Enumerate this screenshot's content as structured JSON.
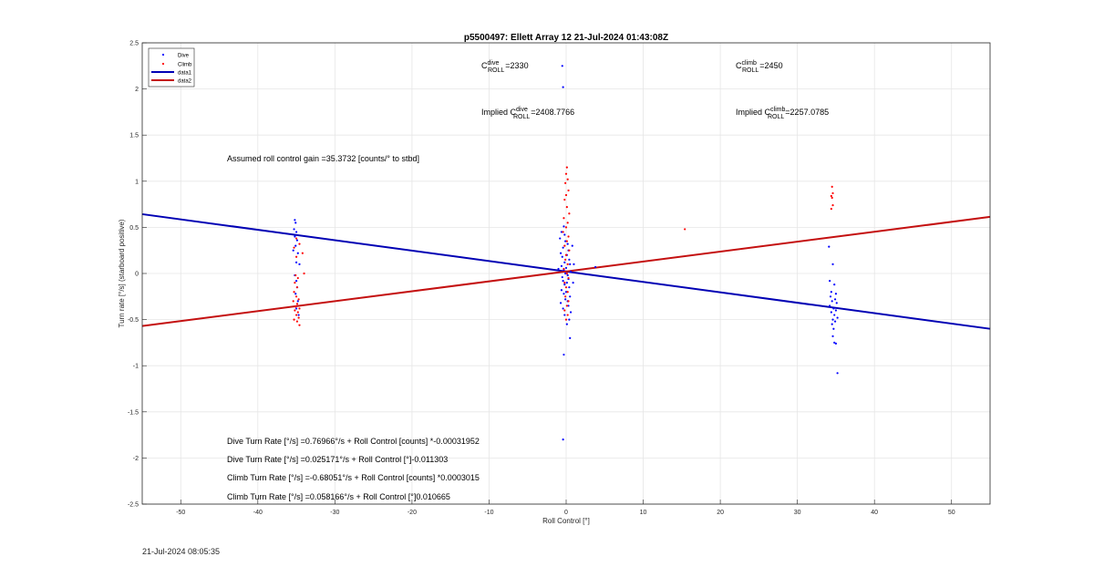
{
  "chart_data": {
    "type": "scatter",
    "title": "p5500497: Ellett Array 12 21-Jul-2024 01:43:08Z",
    "xlabel": "Roll Control [°]",
    "ylabel": "Turn rate [°/s] (starboard positive)",
    "xlim": [
      -55,
      55
    ],
    "ylim": [
      -2.5,
      2.5
    ],
    "xticks": [
      -50,
      -40,
      -30,
      -20,
      -10,
      0,
      10,
      20,
      30,
      40,
      50
    ],
    "yticks": [
      -2.5,
      -2,
      -1.5,
      -1,
      -0.5,
      0,
      0.5,
      1,
      1.5,
      2,
      2.5
    ],
    "grid": true,
    "legend_position": "top-left",
    "legend": [
      {
        "label": "Dive",
        "kind": "marker",
        "color": "#0000ff"
      },
      {
        "label": "Climb",
        "kind": "marker",
        "color": "#ff0000"
      },
      {
        "label": "data1",
        "kind": "line",
        "color": "#0000b4"
      },
      {
        "label": "data2",
        "kind": "line",
        "color": "#c41010"
      }
    ],
    "series": [
      {
        "name": "Dive",
        "color": "#0000ff",
        "points": [
          [
            -35.2,
            0.58
          ],
          [
            -35.1,
            0.55
          ],
          [
            -35.3,
            0.48
          ],
          [
            -35.0,
            0.45
          ],
          [
            -35.2,
            0.4
          ],
          [
            -34.9,
            0.36
          ],
          [
            -35.1,
            0.3
          ],
          [
            -35.4,
            0.25
          ],
          [
            -34.8,
            0.22
          ],
          [
            -35.0,
            0.12
          ],
          [
            -34.6,
            0.1
          ],
          [
            -35.2,
            -0.02
          ],
          [
            -35.0,
            -0.08
          ],
          [
            -34.9,
            -0.15
          ],
          [
            -35.1,
            -0.22
          ],
          [
            -34.8,
            -0.3
          ],
          [
            -35.0,
            -0.38
          ],
          [
            -34.7,
            -0.45
          ],
          [
            -0.5,
            2.25
          ],
          [
            -0.4,
            2.02
          ],
          [
            -0.3,
            0.51
          ],
          [
            -0.6,
            0.45
          ],
          [
            -0.2,
            0.42
          ],
          [
            -0.8,
            0.38
          ],
          [
            -0.1,
            0.35
          ],
          [
            0.2,
            0.32
          ],
          [
            -0.4,
            0.28
          ],
          [
            0.3,
            0.25
          ],
          [
            -0.7,
            0.22
          ],
          [
            0.1,
            0.2
          ],
          [
            -0.5,
            0.18
          ],
          [
            0.4,
            0.15
          ],
          [
            -0.2,
            0.12
          ],
          [
            0.5,
            0.1
          ],
          [
            -0.6,
            0.08
          ],
          [
            0.0,
            0.06
          ],
          [
            -0.3,
            0.04
          ],
          [
            0.6,
            0.02
          ],
          [
            -0.1,
            0.0
          ],
          [
            0.2,
            -0.02
          ],
          [
            -0.5,
            -0.04
          ],
          [
            0.3,
            -0.06
          ],
          [
            -0.4,
            -0.08
          ],
          [
            0.1,
            -0.1
          ],
          [
            -0.2,
            -0.12
          ],
          [
            0.4,
            -0.15
          ],
          [
            -0.6,
            -0.18
          ],
          [
            0.0,
            -0.2
          ],
          [
            -0.3,
            -0.22
          ],
          [
            0.5,
            -0.25
          ],
          [
            -0.1,
            -0.28
          ],
          [
            0.2,
            -0.3
          ],
          [
            -0.7,
            -0.32
          ],
          [
            0.3,
            -0.35
          ],
          [
            -0.4,
            -0.38
          ],
          [
            0.6,
            -0.42
          ],
          [
            -0.2,
            -0.45
          ],
          [
            0.4,
            -0.5
          ],
          [
            0.1,
            -0.55
          ],
          [
            0.5,
            -0.7
          ],
          [
            -0.3,
            -0.88
          ],
          [
            -0.4,
            -1.8
          ],
          [
            0.8,
            0.3
          ],
          [
            0.9,
            -0.1
          ],
          [
            1.0,
            0.1
          ],
          [
            -1.0,
            0.05
          ],
          [
            3.8,
            0.07
          ],
          [
            34.1,
            0.29
          ],
          [
            34.6,
            0.1
          ],
          [
            34.2,
            -0.08
          ],
          [
            34.8,
            -0.12
          ],
          [
            34.4,
            -0.2
          ],
          [
            35.0,
            -0.22
          ],
          [
            34.3,
            -0.25
          ],
          [
            34.9,
            -0.28
          ],
          [
            34.5,
            -0.3
          ],
          [
            35.1,
            -0.32
          ],
          [
            34.2,
            -0.35
          ],
          [
            34.7,
            -0.38
          ],
          [
            35.0,
            -0.4
          ],
          [
            34.4,
            -0.42
          ],
          [
            34.8,
            -0.45
          ],
          [
            35.2,
            -0.48
          ],
          [
            34.6,
            -0.5
          ],
          [
            34.9,
            -0.52
          ],
          [
            34.5,
            -0.55
          ],
          [
            34.7,
            -0.6
          ],
          [
            34.6,
            -0.68
          ],
          [
            34.8,
            -0.75
          ],
          [
            35.0,
            -0.76
          ],
          [
            35.2,
            -1.08
          ]
        ]
      },
      {
        "name": "Climb",
        "color": "#ff0000",
        "points": [
          [
            -35.0,
            0.38
          ],
          [
            -34.6,
            0.32
          ],
          [
            -35.3,
            0.28
          ],
          [
            -34.2,
            0.22
          ],
          [
            -35.0,
            0.18
          ],
          [
            -34.0,
            0.0
          ],
          [
            -35.1,
            -0.02
          ],
          [
            -34.8,
            -0.05
          ],
          [
            -35.2,
            -0.1
          ],
          [
            -34.9,
            -0.15
          ],
          [
            -35.3,
            -0.2
          ],
          [
            -35.0,
            -0.25
          ],
          [
            -34.7,
            -0.28
          ],
          [
            -35.4,
            -0.3
          ],
          [
            -34.9,
            -0.33
          ],
          [
            -35.1,
            -0.36
          ],
          [
            -34.6,
            -0.38
          ],
          [
            -35.2,
            -0.4
          ],
          [
            -34.8,
            -0.42
          ],
          [
            -35.0,
            -0.45
          ],
          [
            -34.7,
            -0.48
          ],
          [
            -35.3,
            -0.5
          ],
          [
            -34.9,
            -0.52
          ],
          [
            -34.6,
            -0.56
          ],
          [
            0.1,
            1.15
          ],
          [
            0.0,
            1.08
          ],
          [
            0.2,
            1.02
          ],
          [
            -0.1,
            0.98
          ],
          [
            0.3,
            0.9
          ],
          [
            0.0,
            0.85
          ],
          [
            -0.2,
            0.8
          ],
          [
            0.1,
            0.72
          ],
          [
            0.4,
            0.65
          ],
          [
            -0.3,
            0.6
          ],
          [
            0.2,
            0.55
          ],
          [
            0.0,
            0.5
          ],
          [
            -0.4,
            0.45
          ],
          [
            0.3,
            0.4
          ],
          [
            0.1,
            0.35
          ],
          [
            -0.2,
            0.3
          ],
          [
            0.4,
            0.25
          ],
          [
            0.0,
            0.2
          ],
          [
            -0.1,
            0.15
          ],
          [
            0.2,
            0.1
          ],
          [
            -0.3,
            0.05
          ],
          [
            0.1,
            0.0
          ],
          [
            0.3,
            -0.05
          ],
          [
            -0.2,
            -0.1
          ],
          [
            0.0,
            -0.15
          ],
          [
            0.2,
            -0.2
          ],
          [
            -0.1,
            -0.25
          ],
          [
            0.3,
            -0.3
          ],
          [
            0.1,
            -0.35
          ],
          [
            -0.2,
            -0.4
          ],
          [
            0.2,
            -0.45
          ],
          [
            0.0,
            -0.5
          ],
          [
            15.4,
            0.48
          ],
          [
            34.5,
            0.94
          ],
          [
            34.6,
            0.87
          ],
          [
            34.4,
            0.84
          ],
          [
            34.5,
            0.82
          ],
          [
            34.6,
            0.74
          ],
          [
            34.4,
            0.7
          ]
        ]
      }
    ],
    "fit_lines": [
      {
        "name": "data1",
        "color": "#0000b4",
        "x": [
          -55,
          55
        ],
        "y": [
          0.6429,
          -0.5996
        ]
      },
      {
        "name": "data2",
        "color": "#c41010",
        "x": [
          -55,
          55
        ],
        "y": [
          -0.5693,
          0.6134
        ]
      }
    ],
    "annotations": {
      "c_roll_dive": {
        "base": "C",
        "sup": "dive",
        "sub": "ROLL",
        "value": "=2330"
      },
      "c_roll_climb": {
        "base": "C",
        "sup": "climb",
        "sub": "ROLL",
        "value": "=2450"
      },
      "implied_dive": {
        "prefix": "Implied C",
        "sup": "dive",
        "sub": "ROLL",
        "value": "=2408.7766"
      },
      "implied_climb": {
        "prefix": "Implied C",
        "sup": "climb",
        "sub": "ROLL",
        "value": "=2257.0785"
      },
      "gain": "Assumed roll control gain =35.3732 [counts/° to stbd]",
      "eq_dive_counts": "Dive Turn Rate [°/s] =0.76966°/s + Roll Control [counts] *-0.00031952",
      "eq_dive_deg": "Dive Turn Rate [°/s] =0.025171°/s + Roll Control [°]-0.011303",
      "eq_climb_counts": "Climb Turn Rate [°/s] =-0.68051°/s + Roll Control [counts] *0.0003015",
      "eq_climb_deg": "Climb Turn Rate [°/s] =0.058166°/s + Roll Control [°]0.010665"
    }
  },
  "footer": {
    "timestamp": "21-Jul-2024 08:05:35"
  }
}
